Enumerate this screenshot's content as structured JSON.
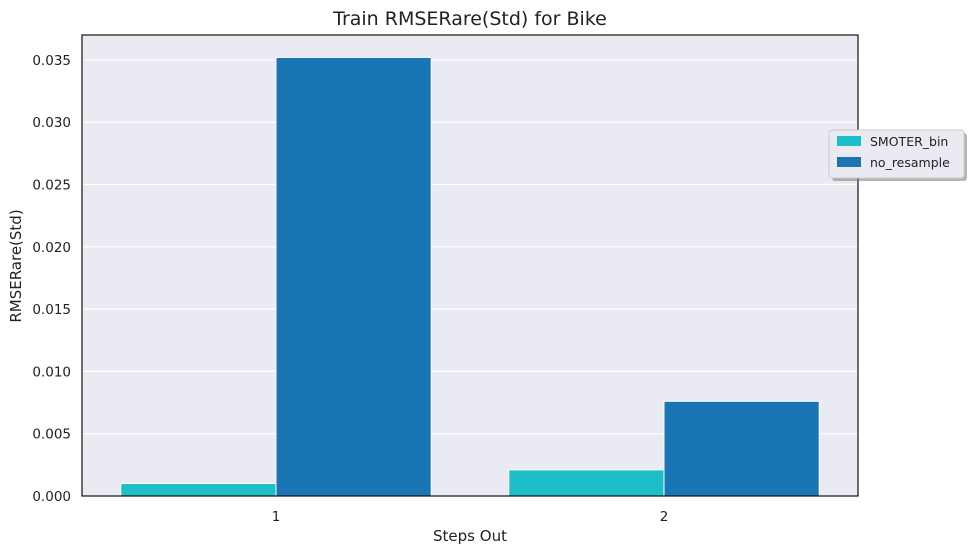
{
  "chart_data": {
    "type": "bar",
    "title": "Train RMSERare(Std) for Bike",
    "xlabel": "Steps Out",
    "ylabel": "RMSERare(Std)",
    "categories": [
      "1",
      "2"
    ],
    "series": [
      {
        "name": "SMOTER_bin",
        "color": "#1ebec8",
        "values": [
          0.001,
          0.0021
        ]
      },
      {
        "name": "no_resample",
        "color": "#1a75b4",
        "values": [
          0.0352,
          0.0076
        ]
      }
    ],
    "ylim": [
      0,
      0.037
    ],
    "yticks": [
      "0.000",
      "0.005",
      "0.010",
      "0.015",
      "0.020",
      "0.025",
      "0.030",
      "0.035"
    ],
    "grid": true,
    "legend_position": "right, outside the plot area",
    "background_color": "#eaeaf2"
  }
}
